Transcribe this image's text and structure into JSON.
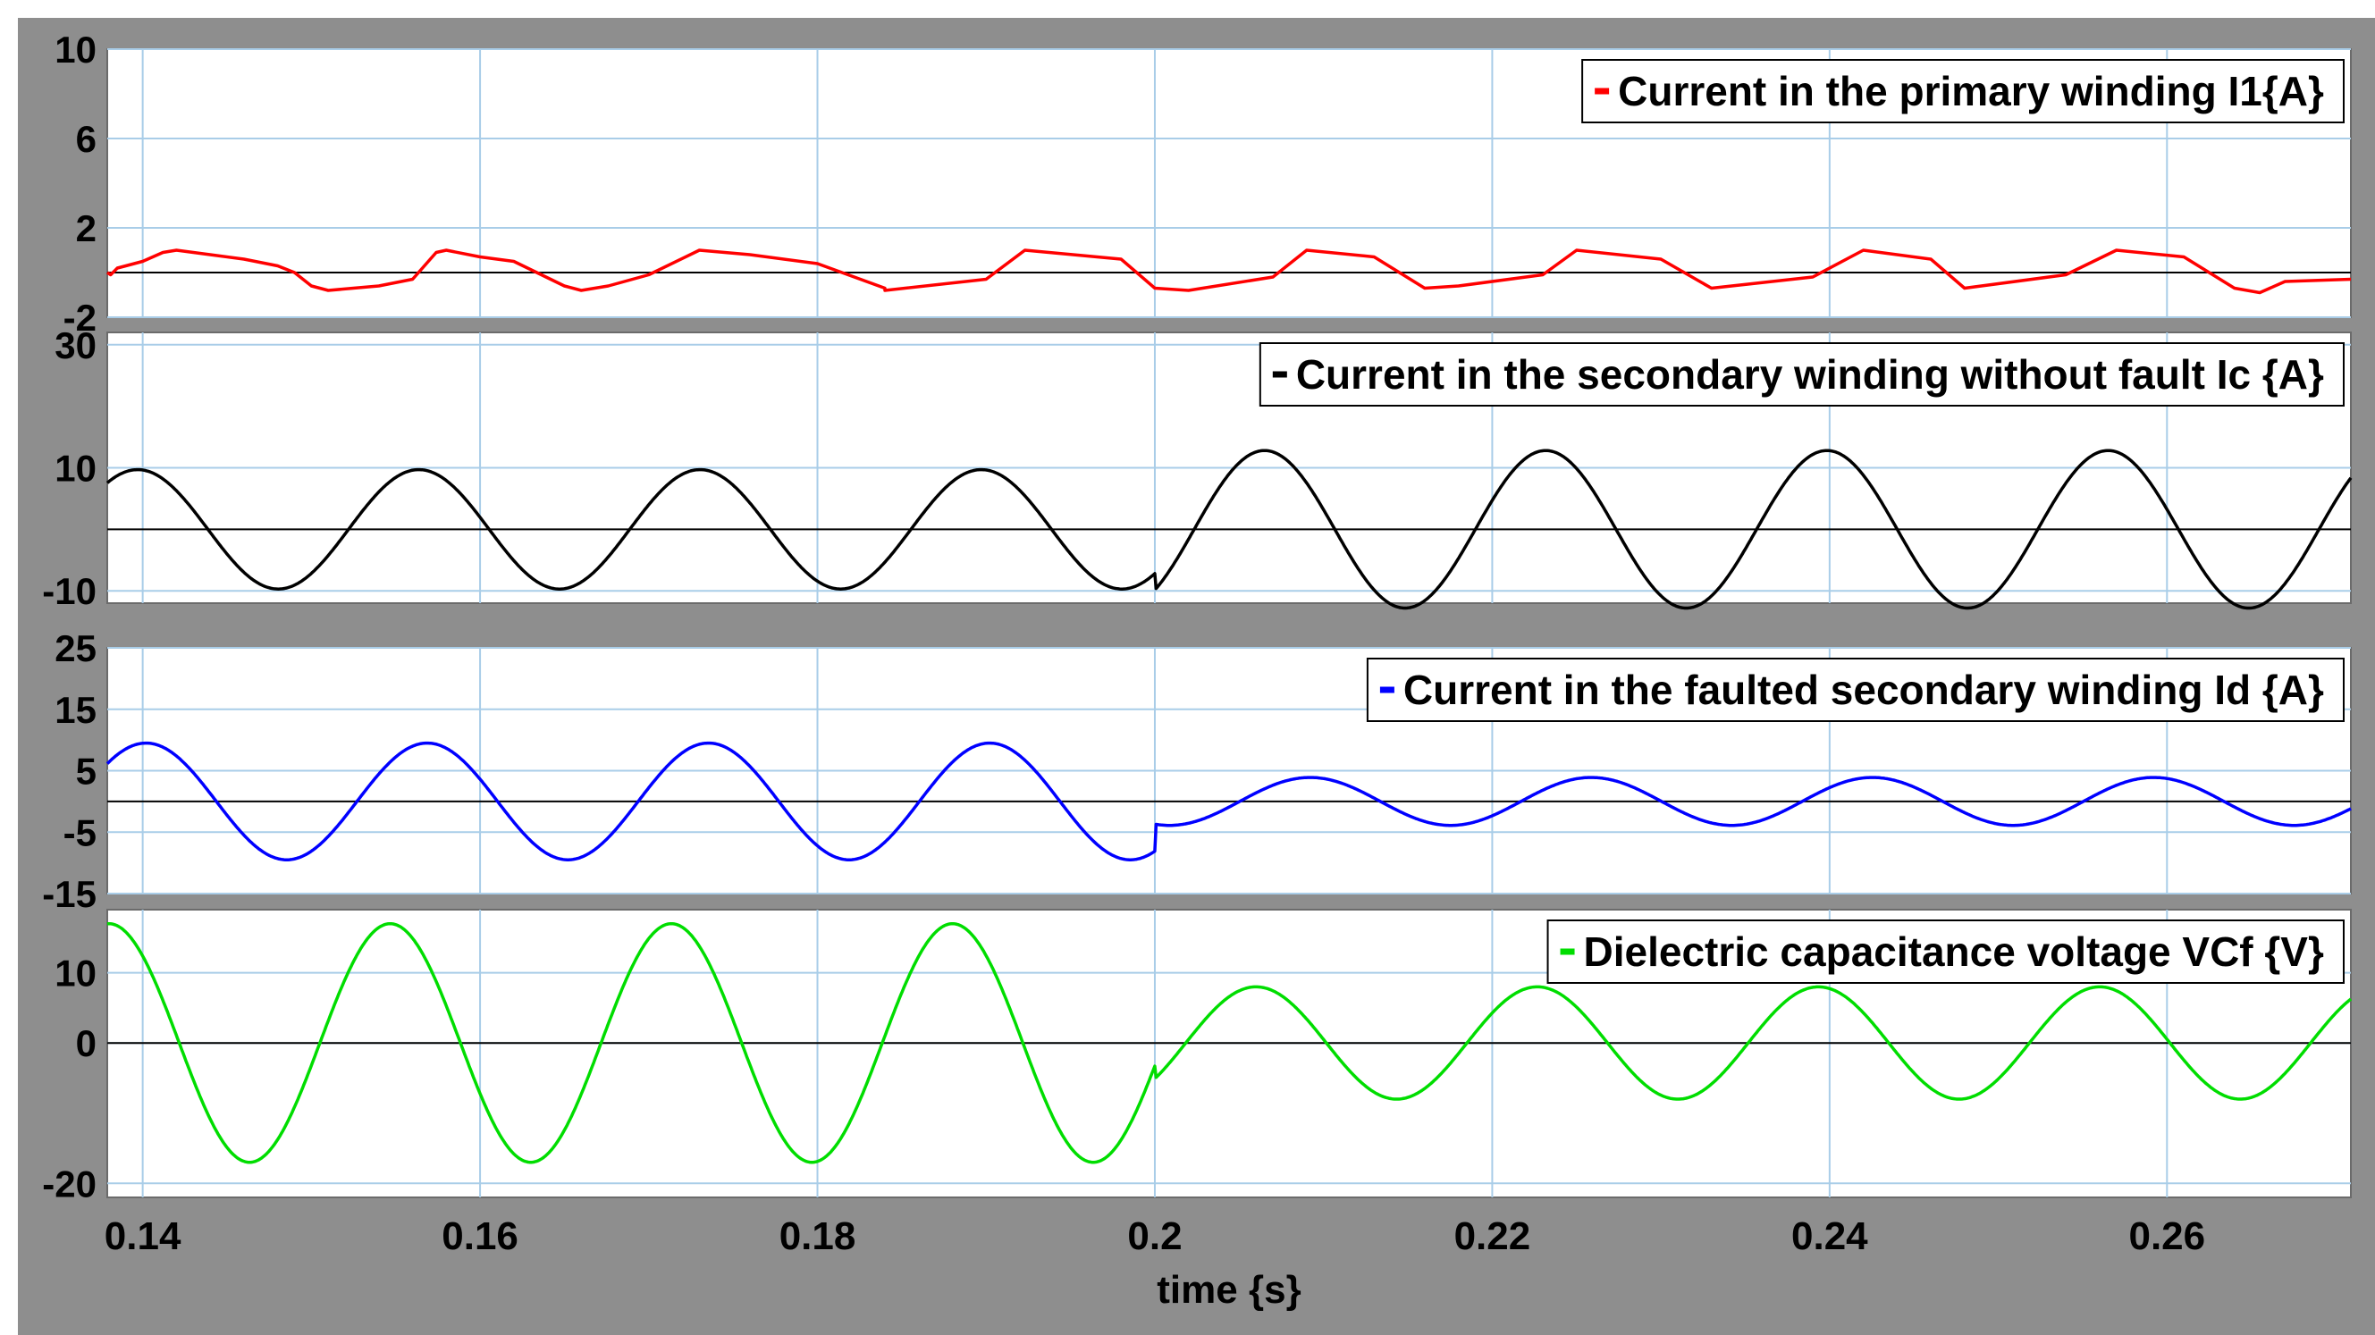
{
  "chart_data": [
    {
      "type": "line",
      "yticks": [
        -2,
        2,
        6,
        10
      ],
      "ylim": [
        -2,
        10
      ],
      "legend": "Current in the primary winding I1{A}",
      "legend_position": "top-right",
      "color": "#ff0000",
      "series": [
        {
          "name": "Current in the primary winding I1{A}",
          "x": [
            0.1379,
            0.1381,
            0.1385,
            0.139,
            0.14,
            0.1412,
            0.142,
            0.144,
            0.146,
            0.148,
            0.149,
            0.15,
            0.151,
            0.154,
            0.156,
            0.1574,
            0.158,
            0.16,
            0.162,
            0.165,
            0.166,
            0.1676,
            0.17,
            0.173,
            0.1745,
            0.176,
            0.18,
            0.184,
            0.184,
            0.19,
            0.1923,
            0.198,
            0.2,
            0.202,
            0.207,
            0.209,
            0.213,
            0.216,
            0.218,
            0.223,
            0.225,
            0.23,
            0.233,
            0.239,
            0.242,
            0.246,
            0.248,
            0.254,
            0.257,
            0.261,
            0.264,
            0.2655,
            0.267,
            0.2709
          ],
          "y": [
            0.0,
            -0.1,
            0.2,
            0.3,
            0.5,
            0.9,
            1.0,
            0.8,
            0.6,
            0.3,
            0.0,
            -0.6,
            -0.8,
            -0.6,
            -0.3,
            0.9,
            1.0,
            0.7,
            0.5,
            -0.6,
            -0.8,
            -0.6,
            -0.1,
            1.0,
            0.9,
            0.8,
            0.4,
            -0.7,
            -0.8,
            -0.3,
            1.0,
            0.6,
            -0.7,
            -0.8,
            -0.2,
            1.0,
            0.7,
            -0.7,
            -0.6,
            -0.1,
            1.0,
            0.6,
            -0.7,
            -0.2,
            1.0,
            0.6,
            -0.7,
            -0.1,
            1.0,
            0.7,
            -0.7,
            -0.9,
            -0.4,
            -0.3
          ]
        }
      ]
    },
    {
      "type": "line",
      "yticks": [
        -10,
        10,
        30
      ],
      "ylim": [
        -12,
        32
      ],
      "legend": "Current in the secondary winding without fault Ic {A}",
      "legend_position": "top-right",
      "color": "#000000",
      "series": [
        {
          "name": "Current in the secondary winding without fault Ic {A}",
          "wave": {
            "period": 0.01667,
            "t_start": 0.1379,
            "t_change": 0.2,
            "t_end": 0.2709,
            "amp_before": 9.7,
            "peak_before": 0.1397,
            "amp_after": 12.8,
            "peak_after": 0.2065
          }
        }
      ]
    },
    {
      "type": "line",
      "yticks": [
        -15,
        -5,
        5,
        15,
        25
      ],
      "ylim": [
        -15,
        25
      ],
      "legend": "Current in the faulted secondary winding Id {A}",
      "legend_position": "top-right",
      "color": "#0000ff",
      "series": [
        {
          "name": "Current in the faulted secondary winding Id {A}",
          "wave": {
            "period": 0.01667,
            "t_start": 0.1379,
            "t_change": 0.2,
            "t_end": 0.2709,
            "amp_before": 9.5,
            "peak_before": 0.1402,
            "amp_after": 3.9,
            "peak_after": 0.2092
          }
        }
      ]
    },
    {
      "type": "line",
      "yticks": [
        -20,
        0,
        10
      ],
      "ylim": [
        -22,
        19
      ],
      "legend": "Dielectric capacitance voltage VCf {V}",
      "legend_position": "top-right",
      "color": "#00dd00",
      "series": [
        {
          "name": "Dielectric capacitance voltage VCf {V}",
          "wave": {
            "period": 0.01667,
            "t_start": 0.1379,
            "t_change": 0.2,
            "t_end": 0.2709,
            "amp_before": 17.0,
            "peak_before": 0.138,
            "amp_after": 8.0,
            "peak_after": 0.206
          }
        }
      ]
    }
  ],
  "x_axis": {
    "label": "time {s}",
    "ticks": [
      0.14,
      0.16,
      0.18,
      0.2,
      0.22,
      0.24,
      0.26
    ],
    "tick_labels": [
      "0.14",
      "0.16",
      "0.18",
      "0.2",
      "0.22",
      "0.24",
      "0.26"
    ],
    "xlim": [
      0.1379,
      0.2709
    ],
    "grid": true
  },
  "colors": {
    "frame": "#8e8e8e",
    "grid": "#a9cde8",
    "zero_line": "#000000"
  }
}
